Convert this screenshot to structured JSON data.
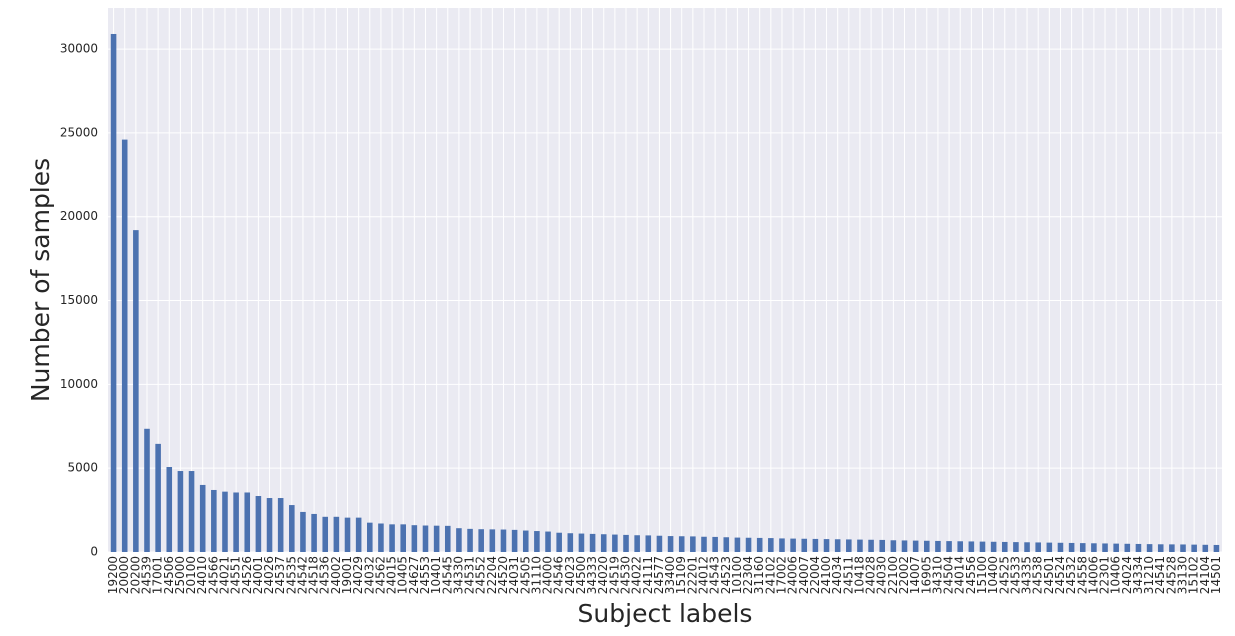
{
  "chart_data": {
    "type": "bar",
    "ylabel": "Number of samples",
    "xlabel": "Subject labels",
    "categories": [
      "19200",
      "20000",
      "20200",
      "24539",
      "17001",
      "24506",
      "25000",
      "20100",
      "24010",
      "24566",
      "24021",
      "24551",
      "24526",
      "24001",
      "24026",
      "24537",
      "24535",
      "24542",
      "24518",
      "24536",
      "24002",
      "19001",
      "24029",
      "24032",
      "24562",
      "24015",
      "10405",
      "24627",
      "24553",
      "10401",
      "24545",
      "34330",
      "24531",
      "24552",
      "22204",
      "24520",
      "24031",
      "24505",
      "31110",
      "24000",
      "24546",
      "24023",
      "24500",
      "34333",
      "24020",
      "24519",
      "24530",
      "24022",
      "24111",
      "24577",
      "33400",
      "15109",
      "22201",
      "24012",
      "24543",
      "24523",
      "10100",
      "22304",
      "31160",
      "24102",
      "17002",
      "24006",
      "24007",
      "22004",
      "24100",
      "24034",
      "24511",
      "10418",
      "24028",
      "24030",
      "22100",
      "22002",
      "14007",
      "16905",
      "34310",
      "24504",
      "24014",
      "24556",
      "15100",
      "10400",
      "24525",
      "24533",
      "34335",
      "24538",
      "24501",
      "24524",
      "24532",
      "24558",
      "14006",
      "22301",
      "10406",
      "24024",
      "34334",
      "31210",
      "24541",
      "24528",
      "33130",
      "15102",
      "24104",
      "14501"
    ],
    "values": [
      30900,
      24600,
      19200,
      7350,
      6450,
      5070,
      4830,
      4830,
      4000,
      3700,
      3600,
      3550,
      3550,
      3340,
      3220,
      3220,
      2800,
      2390,
      2270,
      2100,
      2100,
      2050,
      2050,
      1750,
      1700,
      1650,
      1650,
      1600,
      1580,
      1570,
      1560,
      1420,
      1380,
      1360,
      1350,
      1340,
      1320,
      1280,
      1250,
      1220,
      1150,
      1120,
      1100,
      1080,
      1060,
      1040,
      1020,
      1000,
      990,
      970,
      950,
      940,
      930,
      910,
      900,
      880,
      860,
      850,
      840,
      830,
      810,
      800,
      790,
      780,
      770,
      760,
      750,
      740,
      730,
      720,
      700,
      690,
      680,
      670,
      660,
      650,
      640,
      630,
      620,
      610,
      600,
      590,
      580,
      570,
      560,
      550,
      540,
      530,
      520,
      510,
      500,
      490,
      480,
      470,
      460,
      455,
      450,
      440,
      430,
      420
    ],
    "color": "#4c72b0",
    "ylim": [
      0,
      32450
    ],
    "yticks": [
      0,
      5000,
      10000,
      15000,
      20000,
      25000,
      30000
    ],
    "grid": true
  }
}
